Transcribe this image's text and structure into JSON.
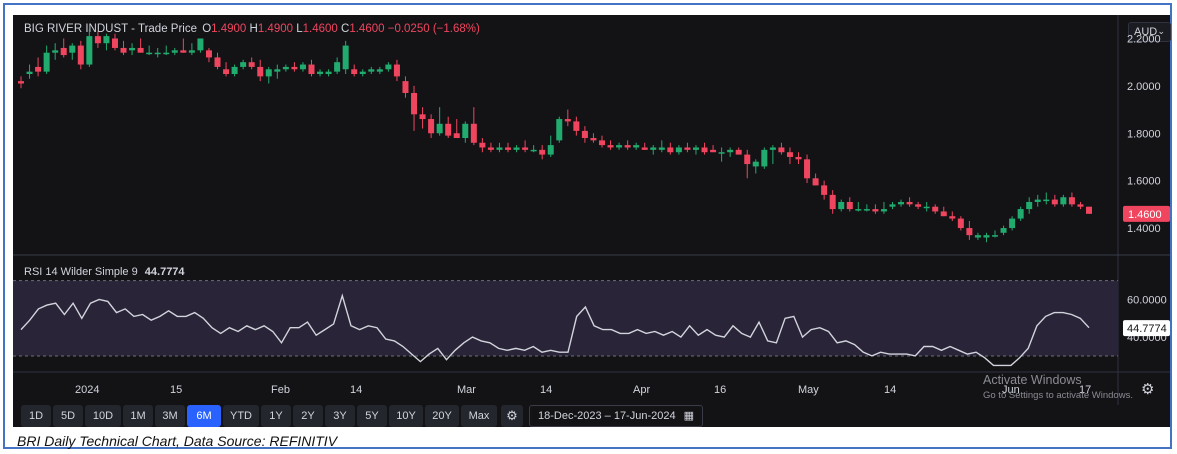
{
  "header": {
    "symbol": "BIG RIVER INDUST",
    "price_type": "- Trade Price",
    "o_label": "O",
    "o_value": "1.4900",
    "h_label": "H",
    "h_value": "1.4900",
    "l_label": "L",
    "l_value": "1.4600",
    "c_label": "C",
    "c_value": "1.4600",
    "change": "−0.0250 (−1.68%)"
  },
  "currency": {
    "value": "AUD",
    "chevron_icon": "chevron-down-icon"
  },
  "rsi_header": {
    "label": "RSI 14 Wilder Simple 9",
    "value": "44.7774"
  },
  "toolbar": {
    "ranges": [
      "1D",
      "5D",
      "10D",
      "1M",
      "3M",
      "6M",
      "YTD",
      "1Y",
      "2Y",
      "3Y",
      "5Y",
      "10Y",
      "20Y",
      "Max"
    ],
    "active_range": "6M",
    "settings_icon": "gear-icon",
    "date_range": "18-Dec-2023  –  17-Jun-2024",
    "calendar_icon": "calendar-icon",
    "bottom_right_icon": "gear-icon"
  },
  "watermark": {
    "line1": "Activate Windows",
    "line2": "Go to Settings to activate Windows."
  },
  "caption": "BRI Daily Technical Chart, Data Source: REFINITIV",
  "colors": {
    "up": "#22ab6e",
    "down": "#f0455f",
    "background": "#131316",
    "rsi_line": "#d1d4dc",
    "rsi_band": "#2a2438",
    "active_button": "#2962ff",
    "frame": "#4472c4"
  },
  "chart_data": [
    {
      "type": "candlestick",
      "title": "BIG RIVER INDUST - Trade Price",
      "x_tick_labels": [
        "2024",
        "15",
        "Feb",
        "14",
        "Mar",
        "14",
        "Apr",
        "16",
        "May",
        "14",
        "Jun",
        "17"
      ],
      "y_tick_labels": [
        "1.4000",
        "1.6000",
        "1.8000",
        "2.0000",
        "2.2000"
      ],
      "ylim": [
        1.32,
        2.24
      ],
      "last_price_label": "1.4600",
      "grid": false,
      "series": [
        {
          "o": 2.02,
          "h": 2.04,
          "l": 1.99,
          "c": 2.01
        },
        {
          "o": 2.05,
          "h": 2.09,
          "l": 2.03,
          "c": 2.06
        },
        {
          "o": 2.08,
          "h": 2.12,
          "l": 2.04,
          "c": 2.06
        },
        {
          "o": 2.06,
          "h": 2.17,
          "l": 2.05,
          "c": 2.14
        },
        {
          "o": 2.14,
          "h": 2.18,
          "l": 2.11,
          "c": 2.15
        },
        {
          "o": 2.16,
          "h": 2.2,
          "l": 2.12,
          "c": 2.13
        },
        {
          "o": 2.14,
          "h": 2.18,
          "l": 2.11,
          "c": 2.17
        },
        {
          "o": 2.17,
          "h": 2.19,
          "l": 2.07,
          "c": 2.09
        },
        {
          "o": 2.09,
          "h": 2.24,
          "l": 2.08,
          "c": 2.21
        },
        {
          "o": 2.21,
          "h": 2.23,
          "l": 2.16,
          "c": 2.18
        },
        {
          "o": 2.18,
          "h": 2.22,
          "l": 2.15,
          "c": 2.21
        },
        {
          "o": 2.2,
          "h": 2.22,
          "l": 2.15,
          "c": 2.16
        },
        {
          "o": 2.16,
          "h": 2.19,
          "l": 2.13,
          "c": 2.14
        },
        {
          "o": 2.15,
          "h": 2.18,
          "l": 2.13,
          "c": 2.16
        },
        {
          "o": 2.16,
          "h": 2.2,
          "l": 2.14,
          "c": 2.14
        },
        {
          "o": 2.14,
          "h": 2.17,
          "l": 2.13,
          "c": 2.14
        },
        {
          "o": 2.14,
          "h": 2.16,
          "l": 2.12,
          "c": 2.14
        },
        {
          "o": 2.14,
          "h": 2.17,
          "l": 2.13,
          "c": 2.14
        },
        {
          "o": 2.14,
          "h": 2.16,
          "l": 2.13,
          "c": 2.15
        },
        {
          "o": 2.15,
          "h": 2.2,
          "l": 2.14,
          "c": 2.14
        },
        {
          "o": 2.14,
          "h": 2.18,
          "l": 2.13,
          "c": 2.15
        },
        {
          "o": 2.15,
          "h": 2.2,
          "l": 2.14,
          "c": 2.2
        },
        {
          "o": 2.15,
          "h": 2.16,
          "l": 2.1,
          "c": 2.12
        },
        {
          "o": 2.12,
          "h": 2.14,
          "l": 2.07,
          "c": 2.08
        },
        {
          "o": 2.07,
          "h": 2.1,
          "l": 2.04,
          "c": 2.05
        },
        {
          "o": 2.05,
          "h": 2.09,
          "l": 2.04,
          "c": 2.08
        },
        {
          "o": 2.08,
          "h": 2.11,
          "l": 2.07,
          "c": 2.1
        },
        {
          "o": 2.1,
          "h": 2.12,
          "l": 2.07,
          "c": 2.08
        },
        {
          "o": 2.08,
          "h": 2.11,
          "l": 2.02,
          "c": 2.04
        },
        {
          "o": 2.04,
          "h": 2.08,
          "l": 2.01,
          "c": 2.07
        },
        {
          "o": 2.06,
          "h": 2.09,
          "l": 2.03,
          "c": 2.07
        },
        {
          "o": 2.07,
          "h": 2.09,
          "l": 2.06,
          "c": 2.08
        },
        {
          "o": 2.08,
          "h": 2.1,
          "l": 2.06,
          "c": 2.07
        },
        {
          "o": 2.07,
          "h": 2.1,
          "l": 2.06,
          "c": 2.09
        },
        {
          "o": 2.09,
          "h": 2.11,
          "l": 2.04,
          "c": 2.05
        },
        {
          "o": 2.05,
          "h": 2.07,
          "l": 2.04,
          "c": 2.06
        },
        {
          "o": 2.05,
          "h": 2.07,
          "l": 2.04,
          "c": 2.06
        },
        {
          "o": 2.06,
          "h": 2.12,
          "l": 2.05,
          "c": 2.1
        },
        {
          "o": 2.07,
          "h": 2.19,
          "l": 2.05,
          "c": 2.17
        },
        {
          "o": 2.07,
          "h": 2.09,
          "l": 2.04,
          "c": 2.05
        },
        {
          "o": 2.05,
          "h": 2.07,
          "l": 2.04,
          "c": 2.06
        },
        {
          "o": 2.06,
          "h": 2.08,
          "l": 2.05,
          "c": 2.07
        },
        {
          "o": 2.06,
          "h": 2.08,
          "l": 2.05,
          "c": 2.07
        },
        {
          "o": 2.07,
          "h": 2.1,
          "l": 2.06,
          "c": 2.09
        },
        {
          "o": 2.09,
          "h": 2.11,
          "l": 2.02,
          "c": 2.04
        },
        {
          "o": 2.02,
          "h": 2.04,
          "l": 1.95,
          "c": 1.97
        },
        {
          "o": 1.97,
          "h": 2.0,
          "l": 1.81,
          "c": 1.88
        },
        {
          "o": 1.88,
          "h": 1.91,
          "l": 1.82,
          "c": 1.86
        },
        {
          "o": 1.86,
          "h": 1.88,
          "l": 1.78,
          "c": 1.8
        },
        {
          "o": 1.8,
          "h": 1.91,
          "l": 1.79,
          "c": 1.84
        },
        {
          "o": 1.84,
          "h": 1.87,
          "l": 1.78,
          "c": 1.79
        },
        {
          "o": 1.8,
          "h": 1.86,
          "l": 1.78,
          "c": 1.78
        },
        {
          "o": 1.78,
          "h": 1.85,
          "l": 1.76,
          "c": 1.84
        },
        {
          "o": 1.84,
          "h": 1.91,
          "l": 1.75,
          "c": 1.76
        },
        {
          "o": 1.76,
          "h": 1.78,
          "l": 1.72,
          "c": 1.74
        },
        {
          "o": 1.74,
          "h": 1.76,
          "l": 1.72,
          "c": 1.73
        },
        {
          "o": 1.73,
          "h": 1.76,
          "l": 1.72,
          "c": 1.74
        },
        {
          "o": 1.74,
          "h": 1.76,
          "l": 1.72,
          "c": 1.73
        },
        {
          "o": 1.73,
          "h": 1.75,
          "l": 1.72,
          "c": 1.74
        },
        {
          "o": 1.74,
          "h": 1.77,
          "l": 1.72,
          "c": 1.73
        },
        {
          "o": 1.73,
          "h": 1.75,
          "l": 1.72,
          "c": 1.73
        },
        {
          "o": 1.73,
          "h": 1.75,
          "l": 1.69,
          "c": 1.71
        },
        {
          "o": 1.71,
          "h": 1.79,
          "l": 1.7,
          "c": 1.75
        },
        {
          "o": 1.77,
          "h": 1.87,
          "l": 1.76,
          "c": 1.86
        },
        {
          "o": 1.86,
          "h": 1.9,
          "l": 1.83,
          "c": 1.85
        },
        {
          "o": 1.85,
          "h": 1.87,
          "l": 1.79,
          "c": 1.81
        },
        {
          "o": 1.81,
          "h": 1.83,
          "l": 1.76,
          "c": 1.78
        },
        {
          "o": 1.78,
          "h": 1.8,
          "l": 1.76,
          "c": 1.77
        },
        {
          "o": 1.77,
          "h": 1.79,
          "l": 1.74,
          "c": 1.75
        },
        {
          "o": 1.75,
          "h": 1.77,
          "l": 1.73,
          "c": 1.74
        },
        {
          "o": 1.74,
          "h": 1.76,
          "l": 1.73,
          "c": 1.75
        },
        {
          "o": 1.75,
          "h": 1.77,
          "l": 1.73,
          "c": 1.74
        },
        {
          "o": 1.74,
          "h": 1.76,
          "l": 1.73,
          "c": 1.75
        },
        {
          "o": 1.74,
          "h": 1.76,
          "l": 1.73,
          "c": 1.73
        },
        {
          "o": 1.73,
          "h": 1.75,
          "l": 1.71,
          "c": 1.74
        },
        {
          "o": 1.73,
          "h": 1.77,
          "l": 1.72,
          "c": 1.74
        },
        {
          "o": 1.74,
          "h": 1.76,
          "l": 1.71,
          "c": 1.72
        },
        {
          "o": 1.72,
          "h": 1.75,
          "l": 1.71,
          "c": 1.74
        },
        {
          "o": 1.74,
          "h": 1.76,
          "l": 1.72,
          "c": 1.73
        },
        {
          "o": 1.73,
          "h": 1.75,
          "l": 1.71,
          "c": 1.74
        },
        {
          "o": 1.74,
          "h": 1.76,
          "l": 1.71,
          "c": 1.72
        },
        {
          "o": 1.73,
          "h": 1.75,
          "l": 1.72,
          "c": 1.72
        },
        {
          "o": 1.72,
          "h": 1.74,
          "l": 1.68,
          "c": 1.72
        },
        {
          "o": 1.72,
          "h": 1.74,
          "l": 1.7,
          "c": 1.73
        },
        {
          "o": 1.73,
          "h": 1.74,
          "l": 1.71,
          "c": 1.71
        },
        {
          "o": 1.71,
          "h": 1.73,
          "l": 1.61,
          "c": 1.67
        },
        {
          "o": 1.66,
          "h": 1.69,
          "l": 1.63,
          "c": 1.68
        },
        {
          "o": 1.66,
          "h": 1.74,
          "l": 1.65,
          "c": 1.73
        },
        {
          "o": 1.73,
          "h": 1.75,
          "l": 1.67,
          "c": 1.74
        },
        {
          "o": 1.74,
          "h": 1.76,
          "l": 1.71,
          "c": 1.72
        },
        {
          "o": 1.72,
          "h": 1.74,
          "l": 1.67,
          "c": 1.7
        },
        {
          "o": 1.7,
          "h": 1.72,
          "l": 1.67,
          "c": 1.69
        },
        {
          "o": 1.69,
          "h": 1.71,
          "l": 1.59,
          "c": 1.61
        },
        {
          "o": 1.61,
          "h": 1.63,
          "l": 1.58,
          "c": 1.58
        },
        {
          "o": 1.58,
          "h": 1.6,
          "l": 1.52,
          "c": 1.54
        },
        {
          "o": 1.54,
          "h": 1.56,
          "l": 1.46,
          "c": 1.48
        },
        {
          "o": 1.48,
          "h": 1.52,
          "l": 1.47,
          "c": 1.51
        },
        {
          "o": 1.51,
          "h": 1.53,
          "l": 1.47,
          "c": 1.48
        },
        {
          "o": 1.48,
          "h": 1.51,
          "l": 1.47,
          "c": 1.48
        },
        {
          "o": 1.48,
          "h": 1.5,
          "l": 1.47,
          "c": 1.48
        },
        {
          "o": 1.48,
          "h": 1.5,
          "l": 1.46,
          "c": 1.47
        },
        {
          "o": 1.47,
          "h": 1.51,
          "l": 1.46,
          "c": 1.48
        },
        {
          "o": 1.49,
          "h": 1.51,
          "l": 1.48,
          "c": 1.5
        },
        {
          "o": 1.5,
          "h": 1.52,
          "l": 1.49,
          "c": 1.51
        },
        {
          "o": 1.51,
          "h": 1.53,
          "l": 1.49,
          "c": 1.5
        },
        {
          "o": 1.5,
          "h": 1.51,
          "l": 1.48,
          "c": 1.49
        },
        {
          "o": 1.49,
          "h": 1.51,
          "l": 1.47,
          "c": 1.49
        },
        {
          "o": 1.49,
          "h": 1.5,
          "l": 1.46,
          "c": 1.47
        },
        {
          "o": 1.47,
          "h": 1.49,
          "l": 1.45,
          "c": 1.45
        },
        {
          "o": 1.45,
          "h": 1.47,
          "l": 1.43,
          "c": 1.44
        },
        {
          "o": 1.44,
          "h": 1.45,
          "l": 1.39,
          "c": 1.4
        },
        {
          "o": 1.4,
          "h": 1.43,
          "l": 1.35,
          "c": 1.37
        },
        {
          "o": 1.36,
          "h": 1.38,
          "l": 1.35,
          "c": 1.37
        },
        {
          "o": 1.36,
          "h": 1.38,
          "l": 1.34,
          "c": 1.37
        },
        {
          "o": 1.37,
          "h": 1.39,
          "l": 1.36,
          "c": 1.37
        },
        {
          "o": 1.38,
          "h": 1.41,
          "l": 1.37,
          "c": 1.4
        },
        {
          "o": 1.4,
          "h": 1.45,
          "l": 1.39,
          "c": 1.44
        },
        {
          "o": 1.44,
          "h": 1.49,
          "l": 1.43,
          "c": 1.48
        },
        {
          "o": 1.48,
          "h": 1.53,
          "l": 1.46,
          "c": 1.51
        },
        {
          "o": 1.51,
          "h": 1.54,
          "l": 1.49,
          "c": 1.52
        },
        {
          "o": 1.52,
          "h": 1.55,
          "l": 1.5,
          "c": 1.52
        },
        {
          "o": 1.52,
          "h": 1.54,
          "l": 1.49,
          "c": 1.5
        },
        {
          "o": 1.5,
          "h": 1.54,
          "l": 1.49,
          "c": 1.53
        },
        {
          "o": 1.53,
          "h": 1.55,
          "l": 1.49,
          "c": 1.5
        },
        {
          "o": 1.5,
          "h": 1.51,
          "l": 1.48,
          "c": 1.49
        },
        {
          "o": 1.49,
          "h": 1.49,
          "l": 1.46,
          "c": 1.46
        }
      ]
    },
    {
      "type": "line",
      "title": "RSI 14 Wilder Simple 9",
      "y_tick_labels": [
        "40.0000",
        "60.0000"
      ],
      "ylim": [
        22,
        73
      ],
      "band": [
        30,
        70
      ],
      "last_value_label": "44.7774",
      "values": [
        44,
        49,
        55,
        57,
        58,
        52,
        58,
        50,
        58,
        60,
        59,
        53,
        55,
        51,
        52,
        49,
        51,
        54,
        51,
        51,
        53,
        50,
        45,
        42,
        45,
        43,
        46,
        44,
        46,
        43,
        37,
        45,
        45,
        48,
        41,
        44,
        47,
        62,
        46,
        44,
        46,
        45,
        39,
        38,
        35,
        31,
        27,
        31,
        34,
        28,
        33,
        37,
        40,
        38,
        37,
        34,
        33,
        34,
        33,
        35,
        32,
        33,
        32,
        32,
        51,
        56,
        46,
        44,
        44,
        42,
        42,
        44,
        42,
        43,
        41,
        43,
        40,
        46,
        41,
        44,
        41,
        40,
        46,
        42,
        40,
        48,
        38,
        37,
        50,
        51,
        40,
        44,
        45,
        43,
        37,
        38,
        36,
        32,
        30,
        32,
        31,
        31,
        31,
        30,
        35,
        35,
        33,
        35,
        33,
        31,
        32,
        29,
        25,
        25,
        25,
        29,
        34,
        46,
        51,
        53,
        53,
        52,
        50,
        45
      ]
    }
  ]
}
